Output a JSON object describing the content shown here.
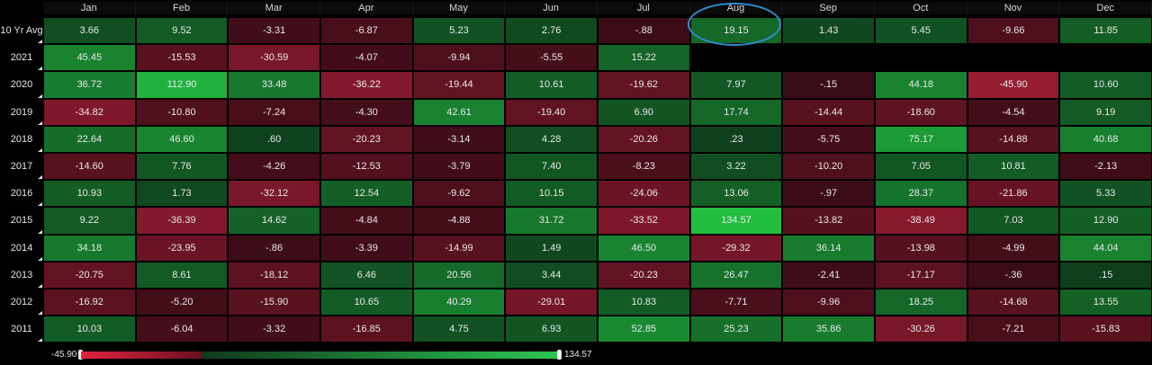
{
  "chart_data": {
    "type": "heatmap",
    "columns": [
      "Jan",
      "Feb",
      "Mar",
      "Apr",
      "May",
      "Jun",
      "Jul",
      "Aug",
      "Sep",
      "Oct",
      "Nov",
      "Dec"
    ],
    "rows": [
      {
        "label": "10 Yr Avg",
        "values": [
          "3.66",
          "9.52",
          "-3.31",
          "-6.87",
          "5.23",
          "2.76",
          "-.88",
          "19.15",
          "1.43",
          "5.45",
          "-9.66",
          "11.85"
        ]
      },
      {
        "label": "2021",
        "values": [
          "45.45",
          "-15.53",
          "-30.59",
          "-4.07",
          "-9.94",
          "-5.55",
          "15.22",
          null,
          null,
          null,
          null,
          null
        ]
      },
      {
        "label": "2020",
        "values": [
          "36.72",
          "112.90",
          "33.48",
          "-36.22",
          "-19.44",
          "10.61",
          "-19.62",
          "7.97",
          "-.15",
          "44.18",
          "-45.90",
          "10.60"
        ]
      },
      {
        "label": "2019",
        "values": [
          "-34.82",
          "-10.80",
          "-7.24",
          "-4.30",
          "42.61",
          "-19.40",
          "6.90",
          "17.74",
          "-14.44",
          "-18.60",
          "-4.54",
          "9.19"
        ]
      },
      {
        "label": "2018",
        "values": [
          "22.64",
          "46.60",
          ".60",
          "-20.23",
          "-3.14",
          "4.28",
          "-20.26",
          ".23",
          "-5.75",
          "75.17",
          "-14.88",
          "40.68"
        ]
      },
      {
        "label": "2017",
        "values": [
          "-14.60",
          "7.76",
          "-4.26",
          "-12.53",
          "-3.79",
          "7.40",
          "-8.23",
          "3.22",
          "-10.20",
          "7.05",
          "10.81",
          "-2.13"
        ]
      },
      {
        "label": "2016",
        "values": [
          "10.93",
          "1.73",
          "-32.12",
          "12.54",
          "-9.62",
          "10.15",
          "-24.06",
          "13.06",
          "-.97",
          "28.37",
          "-21.86",
          "5.33"
        ]
      },
      {
        "label": "2015",
        "values": [
          "9.22",
          "-36.39",
          "14.62",
          "-4.84",
          "-4.88",
          "31.72",
          "-33.52",
          "134.57",
          "-13.82",
          "-38.49",
          "7.03",
          "12.90"
        ]
      },
      {
        "label": "2014",
        "values": [
          "34.18",
          "-23.95",
          "-.86",
          "-3.39",
          "-14.99",
          "1.49",
          "46.50",
          "-29.32",
          "36.14",
          "-13.98",
          "-4.99",
          "44.04"
        ]
      },
      {
        "label": "2013",
        "values": [
          "-20.75",
          "8.61",
          "-18.12",
          "6.46",
          "20.56",
          "3.44",
          "-20.23",
          "26.47",
          "-2.41",
          "-17.17",
          "-.36",
          ".15"
        ]
      },
      {
        "label": "2012",
        "values": [
          "-16.92",
          "-5.20",
          "-15.90",
          "10.65",
          "40.29",
          "-29.01",
          "10.83",
          "-7.71",
          "-9.96",
          "18.25",
          "-14.68",
          "13.55"
        ]
      },
      {
        "label": "2011",
        "values": [
          "10.03",
          "-6.04",
          "-3.32",
          "-16.85",
          "4.75",
          "6.93",
          "52.85",
          "25.23",
          "35.86",
          "-30.26",
          "-7.21",
          "-15.83"
        ]
      }
    ],
    "scale_min": -45.9,
    "scale_max": 134.57,
    "scale_min_label": "-45.90",
    "scale_max_label": "134.57",
    "highlighted": {
      "row": "10 Yr Avg",
      "column": "Aug"
    },
    "colors": {
      "negative": "#8a1a2c",
      "positive": "#169a3c",
      "highlight": "#2d8fd0",
      "background": "#000000"
    }
  }
}
